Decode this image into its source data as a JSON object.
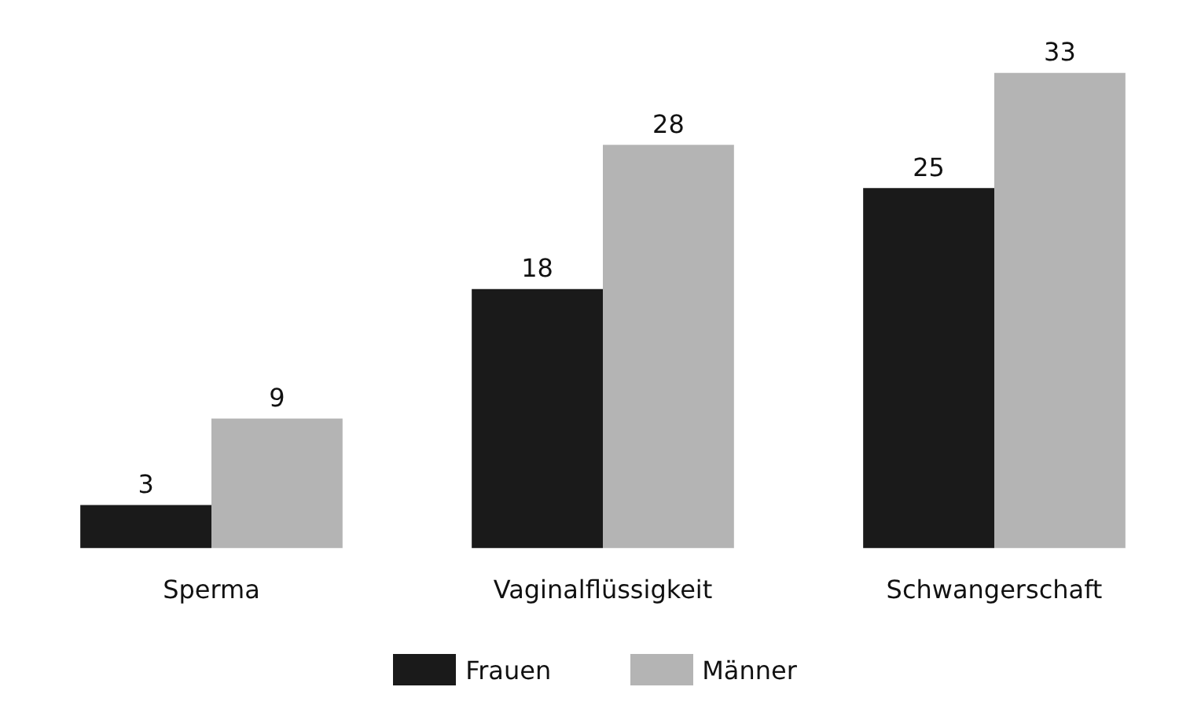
{
  "chart_data": {
    "type": "bar",
    "categories": [
      "Sperma",
      "Vaginalflüssigkeit",
      "Schwangerschaft"
    ],
    "series": [
      {
        "name": "Frauen",
        "color": "#1a1a1a",
        "values": [
          3,
          18,
          25
        ]
      },
      {
        "name": "Männer",
        "color": "#b4b4b4",
        "values": [
          9,
          28,
          33
        ]
      }
    ],
    "data_labels": true,
    "legend": "bottom",
    "grid": false,
    "tick_labels": "x"
  }
}
